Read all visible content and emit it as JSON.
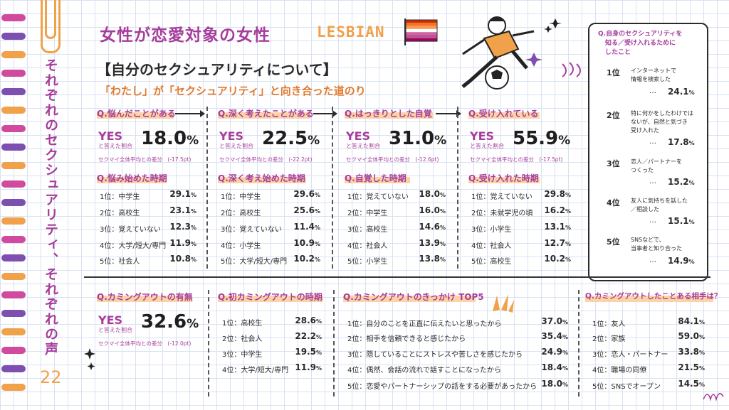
{
  "page": {
    "main_title": "女性が恋愛対象の女性",
    "lesbian": "LESBIAN",
    "section_title": "【自分のセクシュアリティについて】",
    "subtitle": "「わたし」が「セクシュアリティ」と向き合った道のり",
    "side_title": "それぞれのセクシュアリティ、それぞれの声",
    "page_number": "22"
  },
  "colors": {
    "purple": "#a63d9c",
    "orange": "#f0a14a",
    "flag": [
      "#d52d00",
      "#ef7627",
      "#ff9a56",
      "#ffffff",
      "#d162a4",
      "#b55690",
      "#a30262"
    ]
  },
  "top_columns": [
    {
      "q": "Q.悩んだことがある",
      "yes": "YES",
      "yes_sub": "と答えた割合",
      "value": "18.0",
      "unit": "%",
      "diff": "セクマイ全体平均との差分　(-17.5pt)",
      "q2": "Q.悩み始めた時期",
      "items": [
        {
          "rank": "1位：中学生",
          "pct": "29.1",
          "unit": "%"
        },
        {
          "rank": "2位：高校生",
          "pct": "23.1",
          "unit": "%"
        },
        {
          "rank": "3位：覚えていない",
          "pct": "12.3",
          "unit": "%"
        },
        {
          "rank": "4位：大学/短大/専門",
          "pct": "11.9",
          "unit": "%"
        },
        {
          "rank": "5位：社会人",
          "pct": "10.8",
          "unit": "%"
        }
      ]
    },
    {
      "q": "Q.深く考えたことがある",
      "yes": "YES",
      "yes_sub": "と答えた割合",
      "value": "22.5",
      "unit": "%",
      "diff": "セクマイ全体平均との差分　(-22.2pt)",
      "q2": "Q.深く考え始めた時期",
      "items": [
        {
          "rank": "1位：中学生",
          "pct": "29.6",
          "unit": "%"
        },
        {
          "rank": "2位：高校生",
          "pct": "25.6",
          "unit": "%"
        },
        {
          "rank": "3位：覚えていない",
          "pct": "11.4",
          "unit": "%"
        },
        {
          "rank": "4位：小学生",
          "pct": "10.9",
          "unit": "%"
        },
        {
          "rank": "5位：大学/短大/専門",
          "pct": "10.2",
          "unit": "%"
        }
      ]
    },
    {
      "q": "Q.はっきりとした自覚",
      "yes": "YES",
      "yes_sub": "と答えた割合",
      "value": "31.0",
      "unit": "%",
      "diff": "セクマイ全体平均との差分　(-12.6pt)",
      "q2": "Q.自覚した時期",
      "items": [
        {
          "rank": "1位：覚えていない",
          "pct": "18.0",
          "unit": "%"
        },
        {
          "rank": "2位：中学生",
          "pct": "16.0",
          "unit": "%"
        },
        {
          "rank": "3位：高校生",
          "pct": "14.6",
          "unit": "%"
        },
        {
          "rank": "4位：社会人",
          "pct": "13.9",
          "unit": "%"
        },
        {
          "rank": "5位：小学生",
          "pct": "13.8",
          "unit": "%"
        }
      ]
    },
    {
      "q": "Q.受け入れている",
      "yes": "YES",
      "yes_sub": "と答えた割合",
      "value": "55.9",
      "unit": "%",
      "diff": "セクマイ全体平均との差分　(-17.5pt)",
      "q2": "Q.受け入れた時期",
      "items": [
        {
          "rank": "1位：覚えていない",
          "pct": "29.8",
          "unit": "%"
        },
        {
          "rank": "2位：未就学児の頃",
          "pct": "16.2",
          "unit": "%"
        },
        {
          "rank": "3位：小学生",
          "pct": "13.1",
          "unit": "%"
        },
        {
          "rank": "4位：社会人",
          "pct": "12.7",
          "unit": "%"
        },
        {
          "rank": "5位：高校生",
          "pct": "10.2",
          "unit": "%"
        }
      ]
    }
  ],
  "right_box": {
    "q_line1": "Q.自身のセクシュアリティを",
    "q_line2": "知る／受け入れるために",
    "q_line3": "したこと",
    "items": [
      {
        "rank": "1位",
        "lines": [
          "インターネットで",
          "情報を検索した"
        ],
        "dots": "…",
        "pct": "24.1",
        "unit": "%"
      },
      {
        "rank": "2位",
        "lines": [
          "特に何かをしたわけでは",
          "ないが、自然と気づき",
          "受け入れた"
        ],
        "dots": "…",
        "pct": "17.8",
        "unit": "%"
      },
      {
        "rank": "3位",
        "lines": [
          "恋人／パートナーを",
          "つくった"
        ],
        "dots": "…",
        "pct": "15.2",
        "unit": "%"
      },
      {
        "rank": "4位",
        "lines": [
          "友人に気持ちを話した",
          "／相談した"
        ],
        "dots": "…",
        "pct": "15.1",
        "unit": "%"
      },
      {
        "rank": "5位",
        "lines": [
          "SNSなどで、",
          "当事者と知り合った"
        ],
        "dots": "…",
        "pct": "14.9",
        "unit": "%"
      }
    ]
  },
  "bottom": {
    "comingout": {
      "q": "Q.カミングアウトの有無",
      "yes": "YES",
      "yes_sub": "と答えた割合",
      "value": "32.6",
      "unit": "%",
      "diff": "セクマイ全体平均との差分　(-12.0pt)"
    },
    "first": {
      "q": "Q.初カミングアウトの時期",
      "items": [
        {
          "rank": "1位：高校生",
          "pct": "28.6",
          "unit": "%"
        },
        {
          "rank": "2位：社会人",
          "pct": "22.2",
          "unit": "%"
        },
        {
          "rank": "3位：中学生",
          "pct": "19.5",
          "unit": "%"
        },
        {
          "rank": "4位：大学/短大/専門",
          "pct": "11.9",
          "unit": "%"
        }
      ]
    },
    "trigger": {
      "q": "Q.カミングアウトのきっかけ TOP5",
      "items": [
        {
          "rank": "1位：自分のことを正直に伝えたいと思ったから",
          "pct": "37.0",
          "unit": "%"
        },
        {
          "rank": "2位：相手を信頼できると感じたから",
          "pct": "35.4",
          "unit": "%"
        },
        {
          "rank": "3位：隠していることにストレスや苦しさを感じたから",
          "pct": "24.9",
          "unit": "%"
        },
        {
          "rank": "4位：偶然、会話の流れで話すことになったから",
          "pct": "18.4",
          "unit": "%"
        },
        {
          "rank": "5位：恋愛やパートナーシップの話をする必要があったから",
          "pct": "18.0",
          "unit": "%"
        }
      ]
    },
    "partner": {
      "q": "Q.カミングアウトしたことある相手は？",
      "items": [
        {
          "rank": "1位：友人",
          "pct": "84.1",
          "unit": "%"
        },
        {
          "rank": "2位：家族",
          "pct": "59.0",
          "unit": "%"
        },
        {
          "rank": "3位：恋人・パートナー",
          "pct": "33.8",
          "unit": "%"
        },
        {
          "rank": "4位：職場の同僚",
          "pct": "21.5",
          "unit": "%"
        },
        {
          "rank": "5位：SNSでオープン",
          "pct": "14.5",
          "unit": "%"
        }
      ]
    }
  }
}
